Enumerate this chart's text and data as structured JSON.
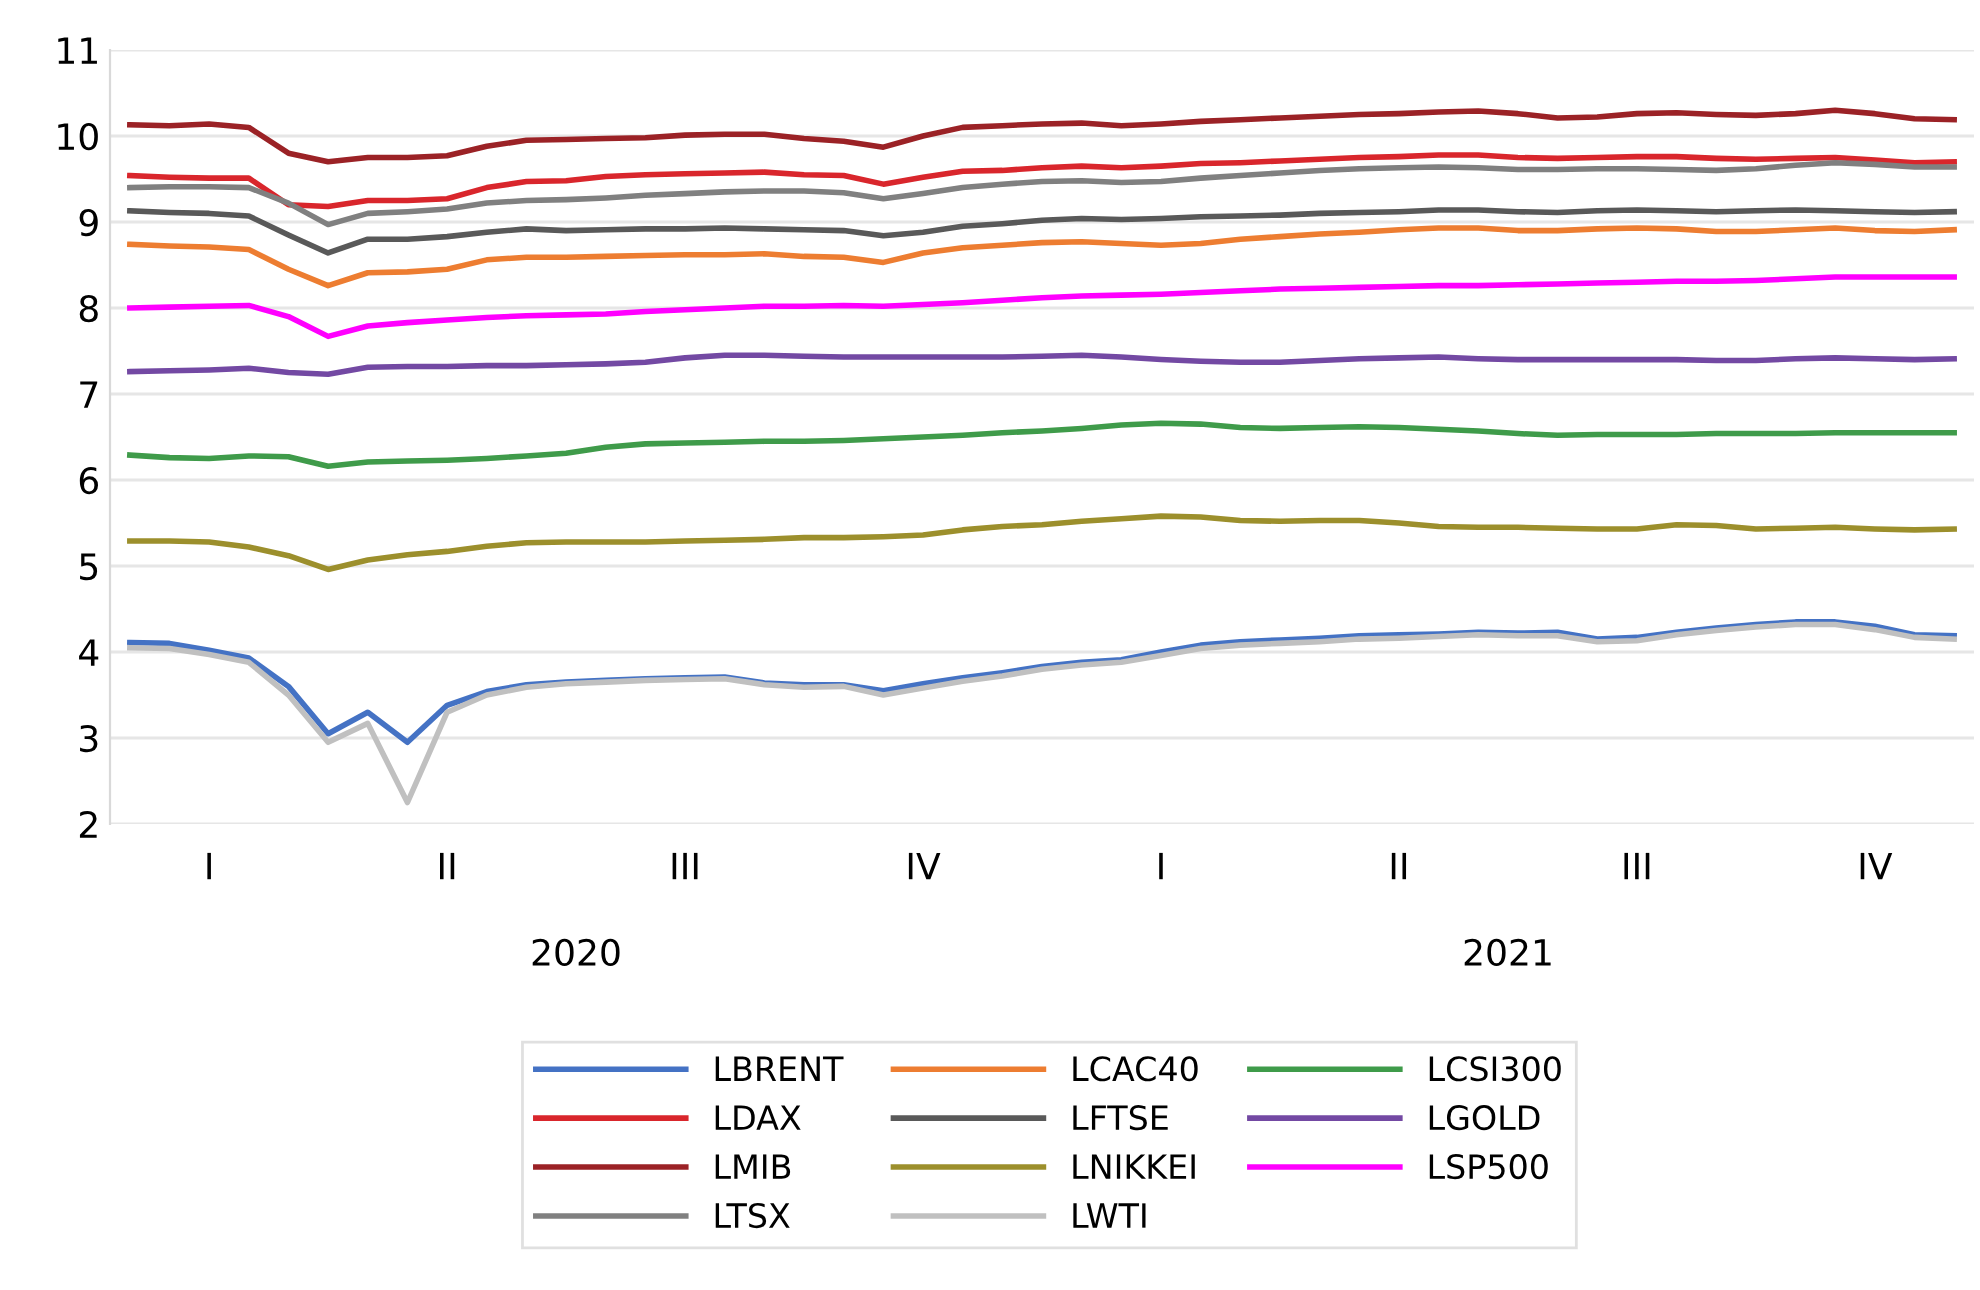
{
  "chart_data": {
    "type": "line",
    "categories": [
      null,
      null,
      "I",
      null,
      null,
      null,
      null,
      null,
      "II",
      null,
      null,
      null,
      null,
      null,
      "III",
      null,
      null,
      null,
      null,
      null,
      "IV",
      null,
      null,
      null,
      null,
      null,
      "I",
      null,
      null,
      null,
      null,
      null,
      "II",
      null,
      null,
      null,
      null,
      null,
      "III",
      null,
      null,
      null,
      null,
      null,
      "IV",
      null,
      null
    ],
    "series": [
      {
        "name": "LBRENT",
        "color": "#4472c4",
        "values": [
          4.11,
          4.1,
          4.02,
          3.93,
          3.6,
          3.05,
          3.3,
          2.95,
          3.38,
          3.54,
          3.62,
          3.65,
          3.67,
          3.69,
          3.7,
          3.71,
          3.64,
          3.62,
          3.62,
          3.55,
          3.63,
          3.7,
          3.76,
          3.83,
          3.88,
          3.91,
          4.0,
          4.08,
          4.12,
          4.14,
          4.16,
          4.19,
          4.2,
          4.21,
          4.23,
          4.22,
          4.23,
          4.15,
          4.17,
          4.23,
          4.28,
          4.32,
          4.35,
          4.35,
          4.3,
          4.2,
          4.19
        ]
      },
      {
        "name": "LCAC40",
        "color": "#ed7d31",
        "values": [
          8.74,
          8.72,
          8.71,
          8.68,
          8.45,
          8.26,
          8.41,
          8.42,
          8.45,
          8.56,
          8.59,
          8.59,
          8.6,
          8.61,
          8.62,
          8.62,
          8.63,
          8.6,
          8.59,
          8.53,
          8.64,
          8.7,
          8.73,
          8.76,
          8.77,
          8.75,
          8.73,
          8.75,
          8.8,
          8.83,
          8.86,
          8.88,
          8.91,
          8.93,
          8.93,
          8.9,
          8.9,
          8.92,
          8.93,
          8.92,
          8.89,
          8.89,
          8.91,
          8.93,
          8.9,
          8.89,
          8.91
        ]
      },
      {
        "name": "LCSI300",
        "color": "#3f9b4a",
        "values": [
          6.29,
          6.26,
          6.25,
          6.28,
          6.27,
          6.16,
          6.21,
          6.22,
          6.23,
          6.25,
          6.28,
          6.31,
          6.38,
          6.42,
          6.43,
          6.44,
          6.45,
          6.45,
          6.46,
          6.48,
          6.5,
          6.52,
          6.55,
          6.57,
          6.6,
          6.64,
          6.66,
          6.65,
          6.61,
          6.6,
          6.61,
          6.62,
          6.61,
          6.59,
          6.57,
          6.54,
          6.52,
          6.53,
          6.53,
          6.53,
          6.54,
          6.54,
          6.54,
          6.55,
          6.55,
          6.55,
          6.55
        ]
      },
      {
        "name": "LDAX",
        "color": "#d9262c",
        "values": [
          9.54,
          9.52,
          9.51,
          9.51,
          9.2,
          9.18,
          9.25,
          9.25,
          9.27,
          9.4,
          9.47,
          9.48,
          9.53,
          9.55,
          9.56,
          9.57,
          9.58,
          9.55,
          9.54,
          9.44,
          9.52,
          9.59,
          9.6,
          9.63,
          9.65,
          9.63,
          9.65,
          9.68,
          9.69,
          9.71,
          9.73,
          9.75,
          9.76,
          9.78,
          9.78,
          9.75,
          9.74,
          9.75,
          9.76,
          9.76,
          9.74,
          9.73,
          9.74,
          9.75,
          9.72,
          9.69,
          9.7
        ]
      },
      {
        "name": "LFTSE",
        "color": "#595959",
        "values": [
          9.13,
          9.11,
          9.1,
          9.07,
          8.85,
          8.64,
          8.8,
          8.8,
          8.83,
          8.88,
          8.92,
          8.9,
          8.91,
          8.92,
          8.92,
          8.93,
          8.92,
          8.91,
          8.9,
          8.84,
          8.88,
          8.95,
          8.98,
          9.02,
          9.04,
          9.03,
          9.04,
          9.06,
          9.07,
          9.08,
          9.1,
          9.11,
          9.12,
          9.14,
          9.14,
          9.12,
          9.11,
          9.13,
          9.14,
          9.13,
          9.12,
          9.13,
          9.14,
          9.13,
          9.12,
          9.11,
          9.12
        ]
      },
      {
        "name": "LGOLD",
        "color": "#7349a3",
        "values": [
          7.26,
          7.27,
          7.28,
          7.3,
          7.25,
          7.23,
          7.31,
          7.32,
          7.32,
          7.33,
          7.33,
          7.34,
          7.35,
          7.37,
          7.42,
          7.45,
          7.45,
          7.44,
          7.43,
          7.43,
          7.43,
          7.43,
          7.43,
          7.44,
          7.45,
          7.43,
          7.4,
          7.38,
          7.37,
          7.37,
          7.39,
          7.41,
          7.42,
          7.43,
          7.41,
          7.4,
          7.4,
          7.4,
          7.4,
          7.4,
          7.39,
          7.39,
          7.41,
          7.42,
          7.41,
          7.4,
          7.41
        ]
      },
      {
        "name": "LMIB",
        "color": "#9b2226",
        "values": [
          10.13,
          10.12,
          10.14,
          10.1,
          9.8,
          9.7,
          9.75,
          9.75,
          9.77,
          9.88,
          9.95,
          9.96,
          9.97,
          9.98,
          10.01,
          10.02,
          10.02,
          9.97,
          9.94,
          9.87,
          10.0,
          10.1,
          10.12,
          10.14,
          10.15,
          10.12,
          10.14,
          10.17,
          10.19,
          10.21,
          10.23,
          10.25,
          10.26,
          10.28,
          10.29,
          10.26,
          10.21,
          10.22,
          10.26,
          10.27,
          10.25,
          10.24,
          10.26,
          10.3,
          10.26,
          10.2,
          10.19
        ]
      },
      {
        "name": "LNIKKEI",
        "color": "#9c8f2c",
        "values": [
          5.29,
          5.29,
          5.28,
          5.22,
          5.12,
          4.96,
          5.07,
          5.13,
          5.17,
          5.23,
          5.27,
          5.28,
          5.28,
          5.28,
          5.29,
          5.3,
          5.31,
          5.33,
          5.33,
          5.34,
          5.36,
          5.42,
          5.46,
          5.48,
          5.52,
          5.55,
          5.58,
          5.57,
          5.53,
          5.52,
          5.53,
          5.53,
          5.5,
          5.46,
          5.45,
          5.45,
          5.44,
          5.43,
          5.43,
          5.48,
          5.47,
          5.43,
          5.44,
          5.45,
          5.43,
          5.42,
          5.43
        ]
      },
      {
        "name": "LSP500",
        "color": "#ff00ff",
        "values": [
          8.0,
          8.01,
          8.02,
          8.03,
          7.9,
          7.67,
          7.79,
          7.83,
          7.86,
          7.89,
          7.91,
          7.92,
          7.93,
          7.96,
          7.98,
          8.0,
          8.02,
          8.02,
          8.03,
          8.02,
          8.04,
          8.06,
          8.09,
          8.12,
          8.14,
          8.15,
          8.16,
          8.18,
          8.2,
          8.22,
          8.23,
          8.24,
          8.25,
          8.26,
          8.26,
          8.27,
          8.28,
          8.29,
          8.3,
          8.31,
          8.31,
          8.32,
          8.34,
          8.36,
          8.36,
          8.36,
          8.36
        ]
      },
      {
        "name": "LTSX",
        "color": "#808080",
        "values": [
          9.4,
          9.41,
          9.41,
          9.4,
          9.22,
          8.97,
          9.1,
          9.12,
          9.15,
          9.22,
          9.25,
          9.26,
          9.28,
          9.31,
          9.33,
          9.35,
          9.36,
          9.36,
          9.34,
          9.27,
          9.33,
          9.4,
          9.44,
          9.47,
          9.48,
          9.46,
          9.47,
          9.51,
          9.54,
          9.57,
          9.6,
          9.62,
          9.63,
          9.64,
          9.63,
          9.61,
          9.61,
          9.62,
          9.62,
          9.61,
          9.6,
          9.62,
          9.66,
          9.69,
          9.67,
          9.64,
          9.64
        ]
      },
      {
        "name": "LWTI",
        "color": "#c0c0c0",
        "values": [
          4.05,
          4.04,
          3.97,
          3.88,
          3.5,
          2.95,
          3.17,
          2.25,
          3.3,
          3.5,
          3.59,
          3.63,
          3.65,
          3.67,
          3.68,
          3.69,
          3.62,
          3.59,
          3.6,
          3.5,
          3.58,
          3.66,
          3.72,
          3.8,
          3.85,
          3.88,
          3.96,
          4.04,
          4.08,
          4.1,
          4.12,
          4.15,
          4.16,
          4.18,
          4.2,
          4.19,
          4.19,
          4.12,
          4.13,
          4.2,
          4.25,
          4.29,
          4.32,
          4.32,
          4.26,
          4.17,
          4.15
        ]
      }
    ],
    "ylim": [
      2,
      11
    ],
    "yticks": [
      2,
      3,
      4,
      5,
      6,
      7,
      8,
      9,
      10,
      11
    ],
    "annotations": [
      "2020",
      "2021"
    ],
    "grid": "y",
    "legend": "bottom",
    "marker": "none",
    "line_style": "solid"
  }
}
